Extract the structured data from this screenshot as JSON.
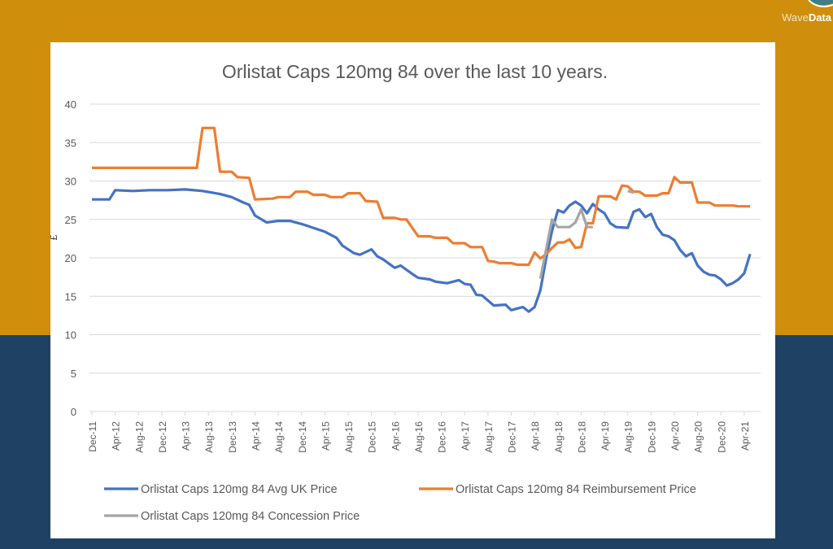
{
  "branding": {
    "logo_part1": "Wave",
    "logo_part2": "Data"
  },
  "colors": {
    "background_top": "#cf8e0c",
    "background_bottom": "#1f4264",
    "avg_uk": "#4472c4",
    "reimbursement": "#ed7d31",
    "concession": "#a5a5a5"
  },
  "chart_data": {
    "type": "line",
    "title": "Orlistat Caps 120mg 84 over the last 10 years.",
    "xlabel": "",
    "ylabel": "£",
    "ylim": [
      0,
      40
    ],
    "yticks": [
      "0",
      "5",
      "10",
      "15",
      "20",
      "25",
      "30",
      "35",
      "40"
    ],
    "grid": true,
    "legend_placement": "bottom",
    "x_tick_labels": [
      "Dec-11",
      "Apr-12",
      "Aug-12",
      "Dec-12",
      "Apr-13",
      "Aug-13",
      "Dec-13",
      "Apr-14",
      "Aug-14",
      "Dec-14",
      "Apr-15",
      "Aug-15",
      "Dec-15",
      "Apr-16",
      "Aug-16",
      "Dec-16",
      "Apr-17",
      "Aug-17",
      "Dec-17",
      "Apr-18",
      "Aug-18",
      "Dec-18",
      "Apr-19",
      "Aug-19",
      "Dec-19",
      "Apr-20",
      "Aug-20",
      "Dec-20",
      "Apr-21"
    ],
    "series": [
      {
        "name": "Orlistat Caps 120mg 84 Avg UK Price",
        "color": "#4472c4",
        "points": [
          [
            "Dec-11",
            27.6
          ],
          [
            "Mar-12",
            27.6
          ],
          [
            "Apr-12",
            28.8
          ],
          [
            "Jul-12",
            28.7
          ],
          [
            "Oct-12",
            28.8
          ],
          [
            "Jan-13",
            28.8
          ],
          [
            "Apr-13",
            28.9
          ],
          [
            "Jul-13",
            28.7
          ],
          [
            "Oct-13",
            28.3
          ],
          [
            "Dec-13",
            27.9
          ],
          [
            "Feb-14",
            27.2
          ],
          [
            "Mar-14",
            26.9
          ],
          [
            "Apr-14",
            25.5
          ],
          [
            "Jun-14",
            24.6
          ],
          [
            "Aug-14",
            24.8
          ],
          [
            "Oct-14",
            24.8
          ],
          [
            "Dec-14",
            24.4
          ],
          [
            "Feb-15",
            23.9
          ],
          [
            "Apr-15",
            23.4
          ],
          [
            "Jun-15",
            22.6
          ],
          [
            "Jul-15",
            21.6
          ],
          [
            "Sep-15",
            20.6
          ],
          [
            "Oct-15",
            20.4
          ],
          [
            "Dec-15",
            21.1
          ],
          [
            "Jan-16",
            20.2
          ],
          [
            "Feb-16",
            19.8
          ],
          [
            "Apr-16",
            18.7
          ],
          [
            "May-16",
            19.0
          ],
          [
            "Jul-16",
            17.9
          ],
          [
            "Aug-16",
            17.4
          ],
          [
            "Oct-16",
            17.2
          ],
          [
            "Nov-16",
            16.9
          ],
          [
            "Jan-17",
            16.7
          ],
          [
            "Mar-17",
            17.1
          ],
          [
            "Apr-17",
            16.6
          ],
          [
            "May-17",
            16.5
          ],
          [
            "Jun-17",
            15.2
          ],
          [
            "Jul-17",
            15.1
          ],
          [
            "Sep-17",
            13.8
          ],
          [
            "Nov-17",
            13.9
          ],
          [
            "Dec-17",
            13.2
          ],
          [
            "Feb-18",
            13.6
          ],
          [
            "Mar-18",
            13.0
          ],
          [
            "Apr-18",
            13.6
          ],
          [
            "May-18",
            15.8
          ],
          [
            "Jun-18",
            20.0
          ],
          [
            "Jul-18",
            23.5
          ],
          [
            "Aug-18",
            26.2
          ],
          [
            "Sep-18",
            25.9
          ],
          [
            "Oct-18",
            26.8
          ],
          [
            "Nov-18",
            27.3
          ],
          [
            "Dec-18",
            26.8
          ],
          [
            "Jan-19",
            25.8
          ],
          [
            "Feb-19",
            27.0
          ],
          [
            "Mar-19",
            26.3
          ],
          [
            "Apr-19",
            25.8
          ],
          [
            "May-19",
            24.5
          ],
          [
            "Jun-19",
            24.0
          ],
          [
            "Aug-19",
            23.9
          ],
          [
            "Sep-19",
            26.0
          ],
          [
            "Oct-19",
            26.3
          ],
          [
            "Nov-19",
            25.3
          ],
          [
            "Dec-19",
            25.7
          ],
          [
            "Jan-20",
            24.0
          ],
          [
            "Feb-20",
            23.0
          ],
          [
            "Mar-20",
            22.8
          ],
          [
            "Apr-20",
            22.3
          ],
          [
            "May-20",
            21.0
          ],
          [
            "Jun-20",
            20.2
          ],
          [
            "Jul-20",
            20.6
          ],
          [
            "Aug-20",
            19.0
          ],
          [
            "Sep-20",
            18.2
          ],
          [
            "Oct-20",
            17.8
          ],
          [
            "Nov-20",
            17.7
          ],
          [
            "Dec-20",
            17.2
          ],
          [
            "Jan-21",
            16.4
          ],
          [
            "Feb-21",
            16.7
          ],
          [
            "Mar-21",
            17.2
          ],
          [
            "Apr-21",
            18.0
          ],
          [
            "May-21",
            20.5
          ]
        ]
      },
      {
        "name": "Orlistat Caps 120mg 84 Reimbursement Price",
        "color": "#ed7d31",
        "points": [
          [
            "Dec-11",
            31.7
          ],
          [
            "Jun-13",
            31.7
          ],
          [
            "Jul-13",
            36.9
          ],
          [
            "Sep-13",
            36.9
          ],
          [
            "Oct-13",
            31.2
          ],
          [
            "Dec-13",
            31.2
          ],
          [
            "Jan-14",
            30.5
          ],
          [
            "Mar-14",
            30.4
          ],
          [
            "Apr-14",
            27.6
          ],
          [
            "Jul-14",
            27.7
          ],
          [
            "Aug-14",
            27.9
          ],
          [
            "Oct-14",
            27.9
          ],
          [
            "Nov-14",
            28.6
          ],
          [
            "Jan-15",
            28.6
          ],
          [
            "Feb-15",
            28.2
          ],
          [
            "Apr-15",
            28.2
          ],
          [
            "May-15",
            27.9
          ],
          [
            "Jul-15",
            27.9
          ],
          [
            "Aug-15",
            28.4
          ],
          [
            "Oct-15",
            28.4
          ],
          [
            "Nov-15",
            27.4
          ],
          [
            "Jan-16",
            27.3
          ],
          [
            "Feb-16",
            25.2
          ],
          [
            "Apr-16",
            25.2
          ],
          [
            "May-16",
            25.0
          ],
          [
            "Jun-16",
            25.0
          ],
          [
            "Aug-16",
            22.8
          ],
          [
            "Oct-16",
            22.8
          ],
          [
            "Nov-16",
            22.6
          ],
          [
            "Jan-17",
            22.6
          ],
          [
            "Feb-17",
            21.9
          ],
          [
            "Apr-17",
            21.9
          ],
          [
            "May-17",
            21.4
          ],
          [
            "Jul-17",
            21.4
          ],
          [
            "Aug-17",
            19.6
          ],
          [
            "Sep-17",
            19.5
          ],
          [
            "Oct-17",
            19.3
          ],
          [
            "Dec-17",
            19.3
          ],
          [
            "Jan-18",
            19.1
          ],
          [
            "Mar-18",
            19.1
          ],
          [
            "Apr-18",
            20.7
          ],
          [
            "May-18",
            19.9
          ],
          [
            "Jun-18",
            20.5
          ],
          [
            "Jul-18",
            21.3
          ],
          [
            "Aug-18",
            22.0
          ],
          [
            "Sep-18",
            22.0
          ],
          [
            "Oct-18",
            22.4
          ],
          [
            "Nov-18",
            21.3
          ],
          [
            "Dec-18",
            21.4
          ],
          [
            "Jan-19",
            24.5
          ],
          [
            "Feb-19",
            24.5
          ],
          [
            "Mar-19",
            28.0
          ],
          [
            "May-19",
            28.0
          ],
          [
            "Jun-19",
            27.6
          ],
          [
            "Jul-19",
            29.4
          ],
          [
            "Aug-19",
            29.3
          ],
          [
            "Sep-19",
            28.6
          ],
          [
            "Oct-19",
            28.6
          ],
          [
            "Nov-19",
            28.1
          ],
          [
            "Jan-20",
            28.1
          ],
          [
            "Feb-20",
            28.4
          ],
          [
            "Mar-20",
            28.4
          ],
          [
            "Apr-20",
            30.5
          ],
          [
            "May-20",
            29.8
          ],
          [
            "Jul-20",
            29.8
          ],
          [
            "Aug-20",
            27.2
          ],
          [
            "Oct-20",
            27.2
          ],
          [
            "Nov-20",
            26.8
          ],
          [
            "Feb-21",
            26.8
          ],
          [
            "Mar-21",
            26.7
          ],
          [
            "May-21",
            26.7
          ]
        ]
      },
      {
        "name": "Orlistat Caps 120mg 84 Concession Price",
        "color": "#a5a5a5",
        "points": [
          [
            "May-18",
            17.3
          ],
          [
            "Jul-18",
            25.0
          ],
          [
            "Aug-18",
            24.0
          ],
          [
            "Oct-18",
            24.0
          ],
          [
            "Nov-18",
            24.6
          ],
          [
            "Dec-18",
            26.3
          ],
          [
            "Jan-19",
            24.0
          ],
          [
            "Feb-19",
            24.0
          ],
          [
            "Mar-19",
            null
          ],
          [
            "Aug-19",
            28.7
          ],
          [
            "Sep-19",
            28.5
          ]
        ]
      }
    ]
  }
}
